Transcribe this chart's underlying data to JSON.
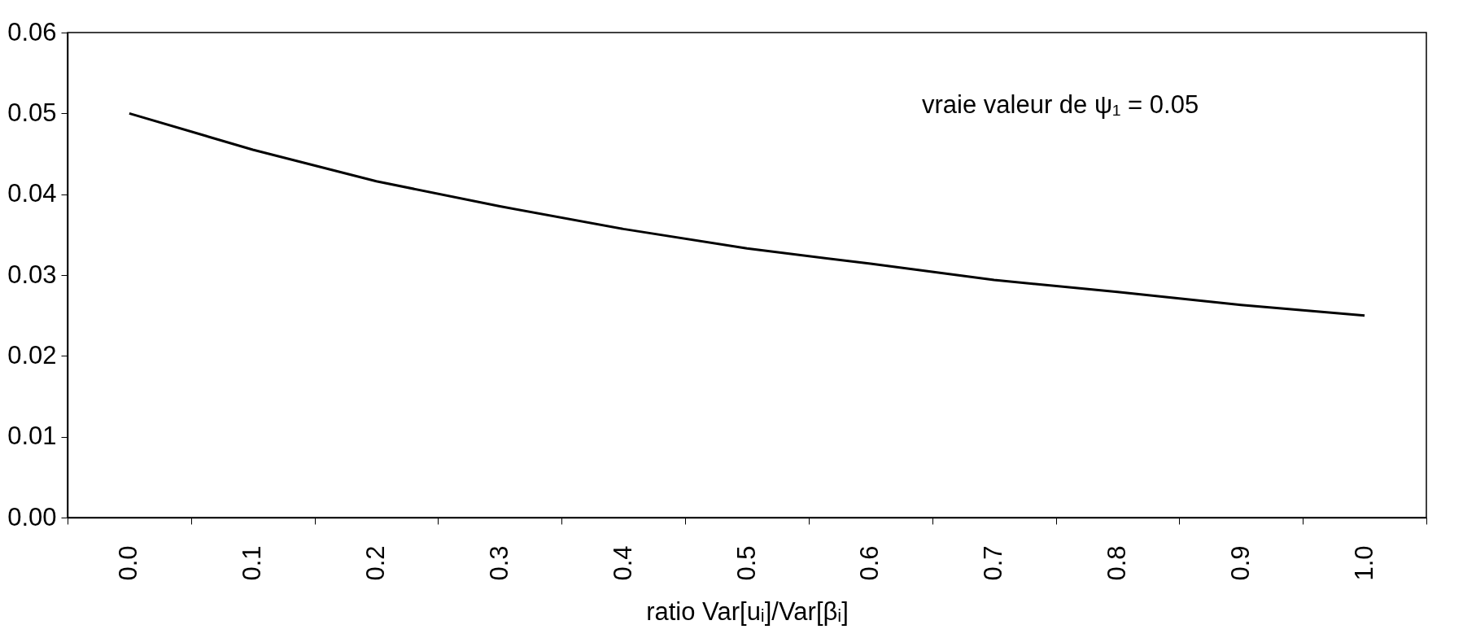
{
  "chart_data": {
    "type": "line",
    "xlabel": "ratio Var[uᵢ]/Var[βᵢ]",
    "categories": [
      "0.0",
      "0.1",
      "0.2",
      "0.3",
      "0.4",
      "0.5",
      "0.6",
      "0.7",
      "0.8",
      "0.9",
      "1.0"
    ],
    "values": [
      0.05,
      0.0455,
      0.0416,
      0.0385,
      0.0357,
      0.0333,
      0.0314,
      0.0294,
      0.0279,
      0.0263,
      0.025
    ],
    "color": "#000000",
    "ylim": [
      0,
      0.06
    ],
    "yticks": [
      {
        "value": 0,
        "label": "0.00"
      },
      {
        "value": 0.01,
        "label": "0.01"
      },
      {
        "value": 0.02,
        "label": "0.02"
      },
      {
        "value": 0.03,
        "label": "0.03"
      },
      {
        "value": 0.04,
        "label": "0.04"
      },
      {
        "value": 0.05,
        "label": "0.05"
      },
      {
        "value": 0.06,
        "label": "0.06"
      }
    ],
    "grid": false,
    "annotations": [
      "vraie valeur de ψ₁ = 0.05"
    ]
  }
}
